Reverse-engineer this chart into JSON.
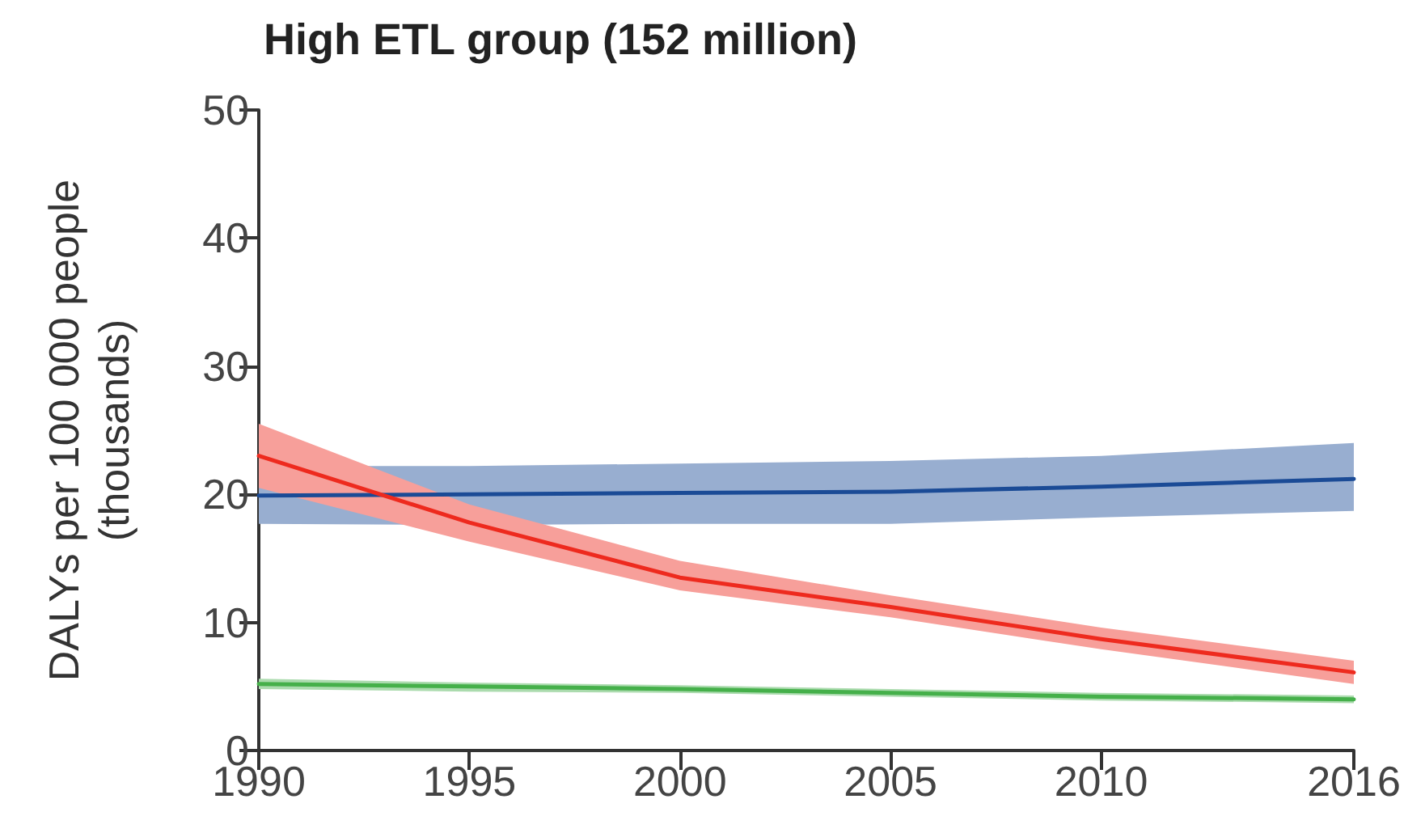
{
  "chart_data": {
    "type": "line",
    "title": "High ETL group (152 million)",
    "ylabel": "DALYs per 100 000 people\n(thousands)",
    "x": [
      1990,
      1995,
      2000,
      2005,
      2010,
      2016
    ],
    "xlim": [
      1990,
      2016
    ],
    "xticks": [
      1990,
      1995,
      2000,
      2005,
      2010,
      2016
    ],
    "ylim": [
      0,
      50
    ],
    "yticks": [
      0,
      10,
      20,
      30,
      40,
      50
    ],
    "grid": false,
    "marker": "none",
    "line_style": "solid",
    "series": [
      {
        "color": "#1b4b96",
        "values": [
          19.9,
          20.0,
          20.1,
          20.2,
          20.6,
          21.2
        ],
        "lower": [
          17.7,
          17.6,
          17.7,
          17.7,
          18.2,
          18.7
        ],
        "upper": [
          22.2,
          22.2,
          22.4,
          22.6,
          23.0,
          24.0
        ]
      },
      {
        "color": "#ee2a1e",
        "values": [
          23.0,
          17.8,
          13.5,
          11.2,
          8.7,
          6.1
        ],
        "lower": [
          20.5,
          16.3,
          12.5,
          10.4,
          7.9,
          5.2
        ],
        "upper": [
          25.5,
          19.2,
          14.8,
          12.1,
          9.6,
          7.0
        ]
      },
      {
        "color": "#45b04a",
        "values": [
          5.2,
          5.0,
          4.8,
          4.5,
          4.2,
          4.0
        ],
        "lower": [
          4.8,
          4.6,
          4.5,
          4.2,
          3.9,
          3.7
        ],
        "upper": [
          5.6,
          5.3,
          5.1,
          4.8,
          4.5,
          4.3
        ]
      }
    ]
  }
}
